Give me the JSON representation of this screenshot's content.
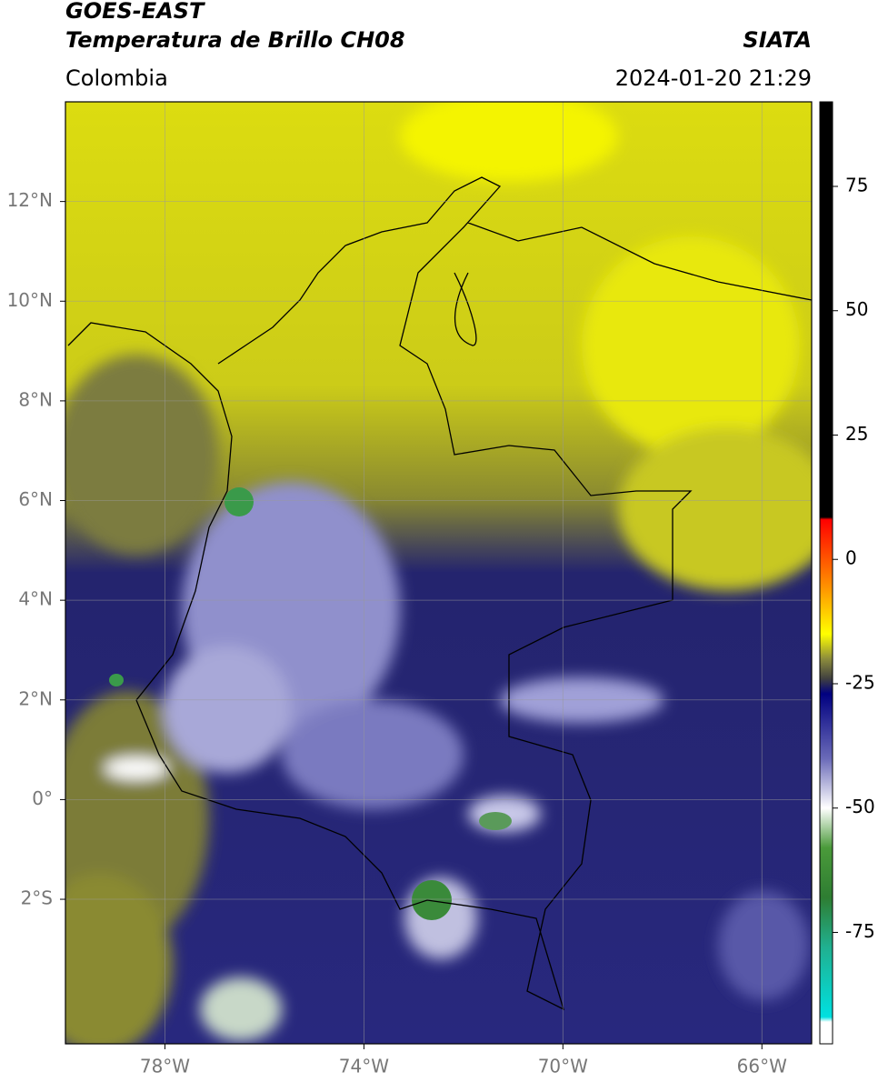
{
  "header": {
    "title_line1": "GOES-EAST",
    "title_line2": "Temperatura de Brillo CH08",
    "region": "Colombia",
    "source": "SIATA",
    "timestamp": "2024-01-20 21:29"
  },
  "map": {
    "xlim": [
      -80,
      -65
    ],
    "ylim": [
      -4.9,
      14
    ],
    "xticks": [
      {
        "value": -78,
        "label": "78°W"
      },
      {
        "value": -74,
        "label": "74°W"
      },
      {
        "value": -70,
        "label": "70°W"
      },
      {
        "value": -66,
        "label": "66°W"
      }
    ],
    "yticks": [
      {
        "value": 12,
        "label": "12°N"
      },
      {
        "value": 10,
        "label": "10°N"
      },
      {
        "value": 8,
        "label": "8°N"
      },
      {
        "value": 6,
        "label": "6°N"
      },
      {
        "value": 4,
        "label": "4°N"
      },
      {
        "value": 2,
        "label": "2°N"
      },
      {
        "value": 0,
        "label": "0°"
      },
      {
        "value": -2,
        "label": "2°S"
      }
    ],
    "grid": true
  },
  "colorbar": {
    "lim": [
      -97.4,
      92
    ],
    "ticks": [
      75,
      50,
      25,
      0,
      -25,
      -50,
      -75
    ],
    "colormap": [
      {
        "value": 92,
        "color": "#000000"
      },
      {
        "value": 8.5,
        "color": "#000000"
      },
      {
        "value": 8,
        "color": "#ff0000"
      },
      {
        "value": -5,
        "color": "#ff8c00"
      },
      {
        "value": -15,
        "color": "#ffff00"
      },
      {
        "value": -20,
        "color": "#8c8c3c"
      },
      {
        "value": -24,
        "color": "#404040"
      },
      {
        "value": -27,
        "color": "#000080"
      },
      {
        "value": -40,
        "color": "#6a6ab8"
      },
      {
        "value": -50,
        "color": "#ffffff"
      },
      {
        "value": -58,
        "color": "#4a9a3a"
      },
      {
        "value": -68,
        "color": "#2e7d32"
      },
      {
        "value": -78,
        "color": "#20b090"
      },
      {
        "value": -92,
        "color": "#00e0e0"
      },
      {
        "value": -93,
        "color": "#ffffff"
      },
      {
        "value": -97.4,
        "color": "#ffffff"
      }
    ]
  }
}
